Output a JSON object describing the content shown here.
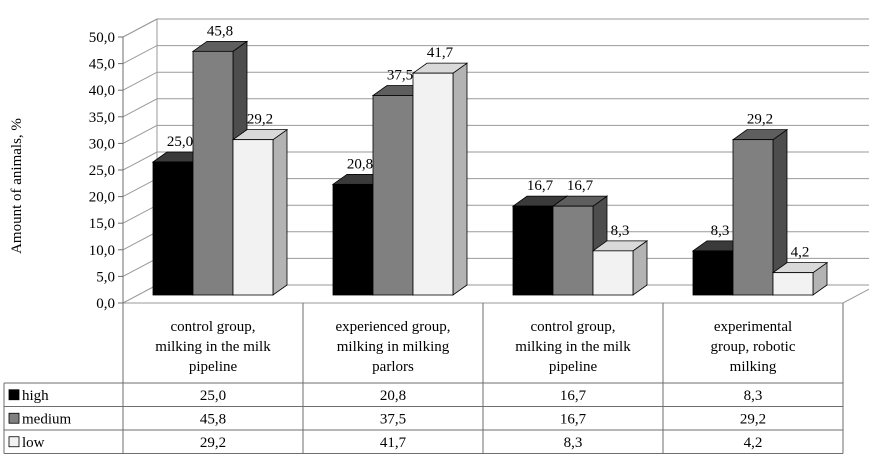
{
  "chart_data": {
    "type": "bar",
    "ylabel": "Amount of animals, %",
    "ylim": [
      0,
      50
    ],
    "yticks": [
      "0,0",
      "5,0",
      "10,0",
      "15,0",
      "20,0",
      "25,0",
      "30,0",
      "35,0",
      "40,0",
      "45,0",
      "50,0"
    ],
    "categories": [
      [
        "control group,",
        "milking in the milk",
        "pipeline"
      ],
      [
        "experienced group,",
        "milking in milking",
        "parlors"
      ],
      [
        "control group,",
        "milking in the milk",
        "pipeline"
      ],
      [
        "experimental",
        "group, robotic",
        "milking"
      ]
    ],
    "series": [
      {
        "name": "high",
        "values": [
          25.0,
          20.8,
          16.7,
          8.3
        ],
        "labels": [
          "25,0",
          "20,8",
          "16,7",
          "8,3"
        ]
      },
      {
        "name": "medium",
        "values": [
          45.8,
          37.5,
          16.7,
          29.2
        ],
        "labels": [
          "45,8",
          "37,5",
          "16,7",
          "29,2"
        ]
      },
      {
        "name": "low",
        "values": [
          29.2,
          41.7,
          8.3,
          4.2
        ],
        "labels": [
          "29,2",
          "41,7",
          "8,3",
          "4,2"
        ]
      }
    ],
    "colors": {
      "high": {
        "front": "#000000",
        "side": "#1a1a1a",
        "top": "#3a3a3a"
      },
      "medium": {
        "front": "#808080",
        "side": "#4d4d4d",
        "top": "#5e5e5e"
      },
      "low": {
        "front": "#f2f2f2",
        "side": "#b3b3b3",
        "top": "#d9d9d9"
      }
    },
    "legend_placement": "data-table",
    "grid": true,
    "style": "3d-column-with-data-table"
  }
}
